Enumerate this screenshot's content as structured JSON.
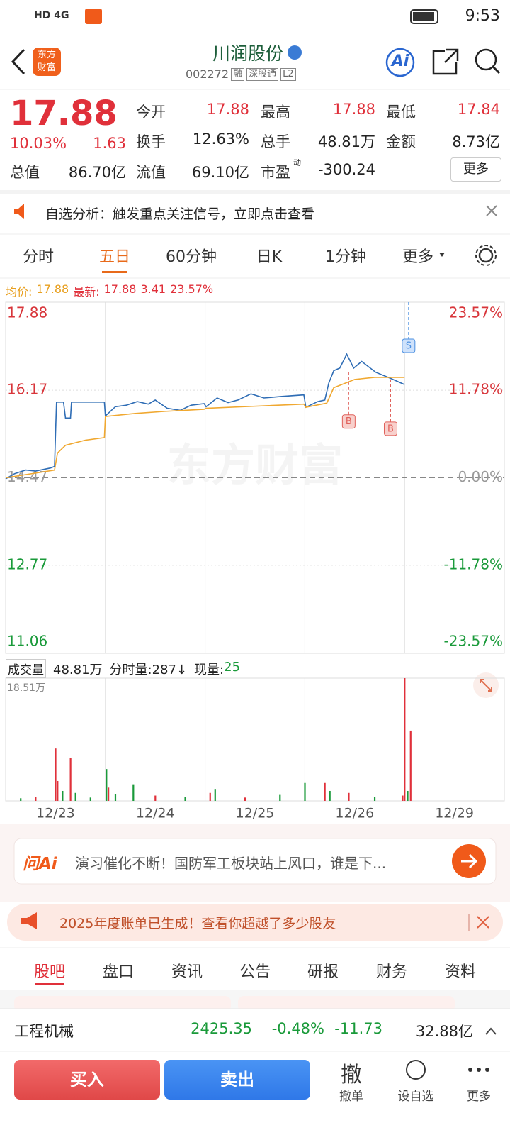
{
  "status_bar": {
    "network": "HD 4G",
    "time": "9:53"
  },
  "header": {
    "logo": "东方财富",
    "title": "川润股份",
    "code": "002272",
    "tags": [
      "融",
      "深股通",
      "L2"
    ],
    "ai": "Ai"
  },
  "quote": {
    "price": "17.88",
    "change_pct": "10.03%",
    "change": "1.63",
    "fields": [
      {
        "label": "今开",
        "value": "17.88",
        "color": "#e0303a"
      },
      {
        "label": "最高",
        "value": "17.88",
        "color": "#e0303a"
      },
      {
        "label": "最低",
        "value": "17.84",
        "color": "#e0303a"
      },
      {
        "label": "换手",
        "value": "12.63%",
        "color": "#222222"
      },
      {
        "label": "总手",
        "value": "48.81万",
        "color": "#222222"
      },
      {
        "label": "金额",
        "value": "8.73亿",
        "color": "#222222"
      },
      {
        "label": "总值",
        "value": "86.70亿",
        "color": "#222222"
      },
      {
        "label": "流值",
        "value": "69.10亿",
        "color": "#222222"
      },
      {
        "label": "市盈",
        "sup": "动",
        "value": "-300.24",
        "color": "#222222"
      }
    ],
    "more": "更多"
  },
  "notice": {
    "text": "自选分析：触发重点关注信号，立即点击查看"
  },
  "tabs": {
    "items": [
      "分时",
      "五日",
      "60分钟",
      "日K",
      "1分钟",
      "更多"
    ],
    "active": 1
  },
  "chart_info": {
    "avg_label": "均价:",
    "avg": "17.88",
    "last_label": "最新:",
    "last": "17.88",
    "change": "3.41",
    "change_pct": "23.57%"
  },
  "chart_data": [
    {
      "type": "line",
      "watermark": "东方财富",
      "xlim": [
        0,
        5
      ],
      "ylim": [
        11.06,
        17.88
      ],
      "yticks": [
        17.88,
        16.17,
        14.47,
        12.77,
        11.06
      ],
      "y2lim": [
        -23.57,
        23.57
      ],
      "y2ticks": [
        {
          "value": 23.57,
          "label": "23.57%"
        },
        {
          "value": 11.78,
          "label": "11.78%"
        },
        {
          "value": 0,
          "label": "0.00%"
        },
        {
          "value": -11.78,
          "label": "-11.78%"
        },
        {
          "value": -23.57,
          "label": "-23.57%"
        }
      ],
      "series": [
        {
          "color": "#2f6db5",
          "x": [
            0,
            0.09,
            0.2,
            0.3,
            0.45,
            0.49,
            0.51,
            0.58,
            0.6,
            0.65,
            0.66,
            0.99,
            1.0,
            1.1,
            1.21,
            1.32,
            1.43,
            1.5,
            1.62,
            1.75,
            1.86,
            1.99,
            2.01,
            2.12,
            2.23,
            2.33,
            2.46,
            2.59,
            2.77,
            2.99,
            3.01,
            3.13,
            3.2,
            3.24,
            3.29,
            3.35,
            3.42,
            3.49,
            3.57,
            3.71,
            3.86,
            4.0
          ],
          "values": [
            14.45,
            14.55,
            14.62,
            14.6,
            14.66,
            14.69,
            15.94,
            15.94,
            15.63,
            15.63,
            15.94,
            15.94,
            15.67,
            15.85,
            15.88,
            15.95,
            15.9,
            15.98,
            15.82,
            15.78,
            15.88,
            15.91,
            15.85,
            16.02,
            15.93,
            15.98,
            16.1,
            16.02,
            16.05,
            16.08,
            15.84,
            15.95,
            15.98,
            16.31,
            16.55,
            16.6,
            16.87,
            16.6,
            16.73,
            16.52,
            16.4,
            16.28
          ]
        },
        {
          "color": "#f0a830",
          "x": [
            0,
            0.49,
            0.52,
            0.6,
            0.8,
            0.99,
            1.0,
            1.3,
            1.6,
            1.99,
            2.01,
            2.5,
            2.99,
            3.01,
            3.22,
            3.29,
            3.5,
            3.7,
            4.0
          ],
          "values": [
            14.47,
            14.62,
            14.95,
            15.1,
            15.2,
            15.25,
            15.66,
            15.72,
            15.76,
            15.8,
            15.82,
            15.86,
            15.9,
            15.84,
            15.92,
            16.22,
            16.38,
            16.42,
            16.42
          ]
        }
      ],
      "trade_marks": [
        {
          "label": "B",
          "x": 3.44,
          "price": 16.52,
          "color": "#e0605a"
        },
        {
          "label": "B",
          "x": 3.86,
          "price": 16.38,
          "color": "#e0605a"
        },
        {
          "label": "S",
          "x": 4.04,
          "price": 17.88,
          "color": "#4a8fe0"
        }
      ]
    },
    {
      "type": "bar",
      "xlim": [
        0,
        5
      ],
      "ylim": [
        0,
        18.51
      ],
      "yticks": [
        {
          "value": 18.51,
          "label": "18.51万"
        }
      ],
      "xticks": [
        {
          "value": 0.5,
          "label": "12/23"
        },
        {
          "value": 1.5,
          "label": "12/24"
        },
        {
          "value": 2.5,
          "label": "12/25"
        },
        {
          "value": 3.5,
          "label": "12/26"
        },
        {
          "value": 4.5,
          "label": "12/29"
        }
      ],
      "x": [
        0.15,
        0.3,
        0.5,
        0.52,
        0.57,
        0.65,
        0.7,
        0.85,
        1.01,
        1.03,
        1.1,
        1.28,
        1.5,
        1.8,
        2.05,
        2.1,
        2.4,
        2.75,
        3.0,
        3.2,
        3.25,
        3.44,
        3.7,
        3.98,
        4.0,
        4.03,
        4.06
      ],
      "values": [
        0.4,
        0.6,
        7.9,
        3.0,
        1.5,
        6.5,
        1.2,
        0.5,
        4.8,
        2.0,
        1.0,
        2.5,
        0.8,
        0.6,
        1.2,
        1.8,
        0.5,
        0.9,
        2.7,
        2.7,
        1.5,
        1.2,
        0.6,
        0.8,
        18.51,
        1.5,
        10.6
      ],
      "colors": [
        "#1a9a3a",
        "#e0303a",
        "#e0303a",
        "#e0303a",
        "#1a9a3a",
        "#e0303a",
        "#1a9a3a",
        "#1a9a3a",
        "#1a9a3a",
        "#e0303a",
        "#1a9a3a",
        "#1a9a3a",
        "#e0303a",
        "#1a9a3a",
        "#e0303a",
        "#1a9a3a",
        "#e0303a",
        "#1a9a3a",
        "#1a9a3a",
        "#e0303a",
        "#1a9a3a",
        "#e0303a",
        "#1a9a3a",
        "#e0303a",
        "#e0303a",
        "#1a9a3a",
        "#e0303a"
      ]
    }
  ],
  "volume_info": {
    "label": "成交量",
    "total": "48.81万",
    "tick": "分时量:287↓",
    "now_label": "现量:",
    "now": "25"
  },
  "ai_bar": {
    "logo": "问Ai",
    "text": "演习催化不断！国防军工板块站上风口，谁是下..."
  },
  "banner": {
    "text": "2025年度账单已生成！查看你超越了多少股友"
  },
  "bottom_tabs": {
    "items": [
      "股吧",
      "盘口",
      "资讯",
      "公告",
      "研报",
      "财务",
      "资料"
    ],
    "active": 0
  },
  "sector": {
    "name": "工程机械",
    "index": "2425.35",
    "change_pct": "-0.48%",
    "change": "-11.73",
    "turnover": "32.88亿"
  },
  "actions": {
    "buy": "买入",
    "sell": "卖出",
    "cancel_icon": "撤",
    "cancel": "撤单",
    "watch": "设自选",
    "more": "更多"
  }
}
